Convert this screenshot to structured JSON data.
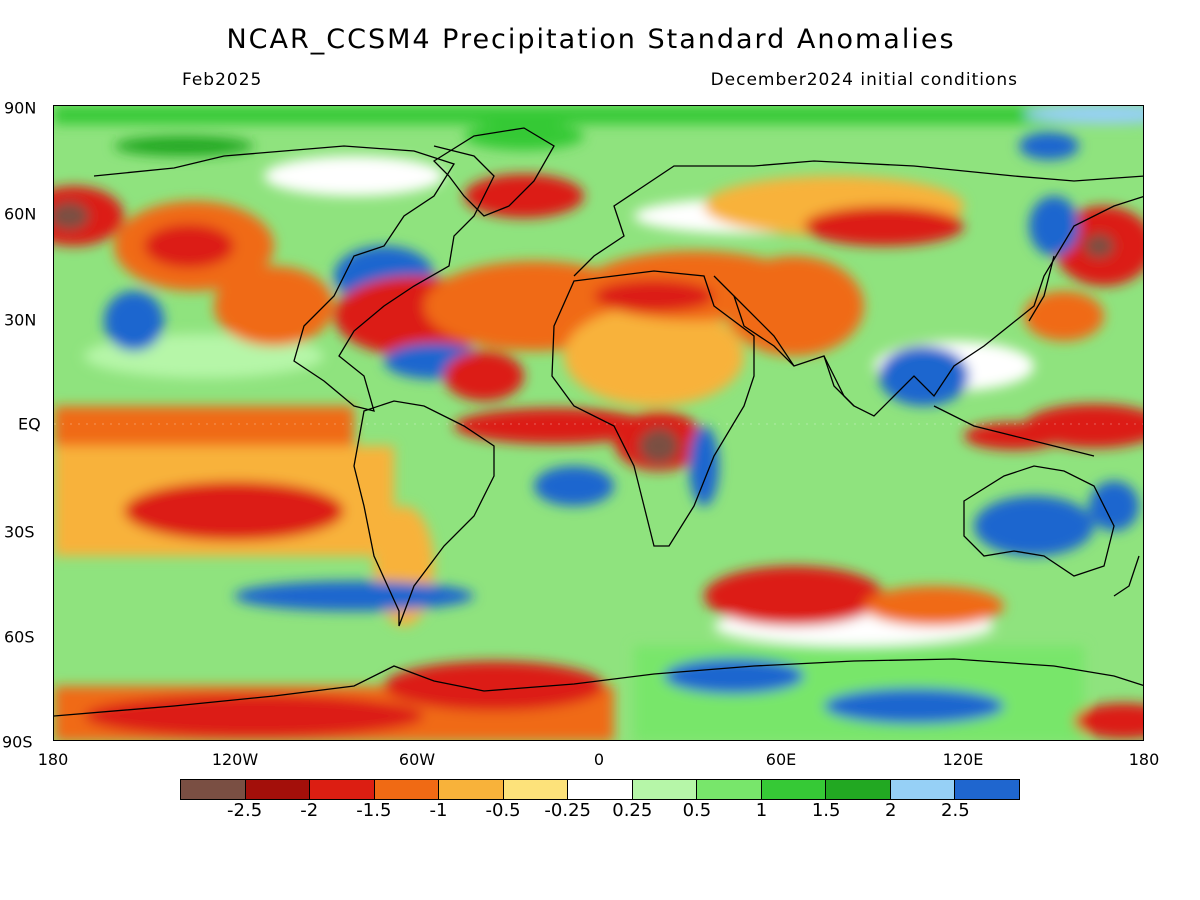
{
  "title": "NCAR_CCSM4 Precipitation Standard Anomalies",
  "subtitle_left": "Feb2025",
  "subtitle_right": "December2024 initial conditions",
  "lat_labels": [
    "90N",
    "60N",
    "30N",
    "EQ",
    "30S",
    "60S",
    "90S"
  ],
  "lon_labels": [
    "180",
    "120W",
    "60W",
    "0",
    "60E",
    "120E",
    "180"
  ],
  "colorbar": {
    "colors": [
      "#7a4f43",
      "#a30f0a",
      "#dc1e12",
      "#f06a14",
      "#f8b23a",
      "#fde27a",
      "#ffffff",
      "#b6f6a8",
      "#78e66b",
      "#36c936",
      "#22a822",
      "#96d0f6",
      "#1f66cf"
    ],
    "labels": [
      "-2.5",
      "-2",
      "-1.5",
      "-1",
      "-0.5",
      "-0.25",
      "0.25",
      "0.5",
      "1",
      "1.5",
      "2",
      "2.5"
    ]
  },
  "map_colors": {
    "background_mix": "#7ddd6c",
    "coastline": "#000000"
  }
}
